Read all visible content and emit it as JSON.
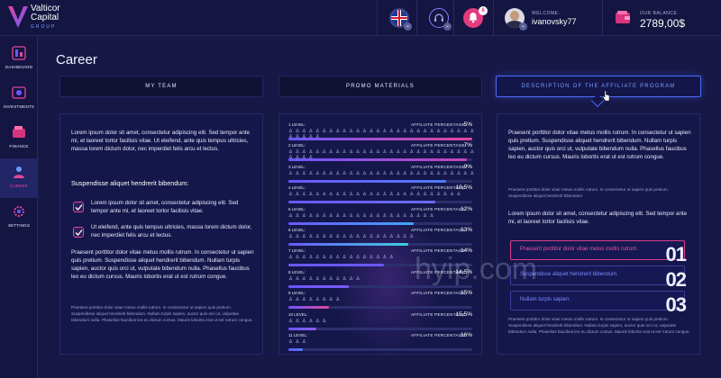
{
  "brand": {
    "line1": "Valticor",
    "line2": "Capital",
    "sub": "GROUP"
  },
  "header": {
    "welcome_label": "WELCOME:",
    "username": "ivanovsky77",
    "balance_label": "OUR BALANCE:",
    "balance_value": "2789,00$",
    "notification_count": "8",
    "lang": "EN"
  },
  "sidebar": {
    "items": [
      {
        "label": "DASHBOARD",
        "icon": "dashboard-icon"
      },
      {
        "label": "INVESTMENTS",
        "icon": "investments-icon"
      },
      {
        "label": "FINANCE",
        "icon": "finance-icon"
      },
      {
        "label": "CAREER",
        "icon": "career-icon",
        "active": true
      },
      {
        "label": "SETTINGS",
        "icon": "settings-icon"
      }
    ]
  },
  "page": {
    "title": "Career"
  },
  "tabs": [
    {
      "label": "MY TEAM"
    },
    {
      "label": "PROMO MATERIALS"
    },
    {
      "label": "DESCRIPTION OF THE AFFILIATE PROGRAM",
      "active": true
    }
  ],
  "left": {
    "intro": "Lorem ipsum dolor sit amet, consectetur adipiscing elit. Sed tempor ante mi, et laoreet tortor facilisis vitae. Ut eleifend, ante quis tempus ultricies, massa lorem dictum dolor, nec imperdiet felis arcu et lectus.",
    "subhead": "Suspendisse aliquet hendrerit bibendum:",
    "checks": [
      "Lorem ipsum dolor sit amet, consectetur adipiscing elit. Sed tempor ante mi, et laoreet tortor facilisis vitae.",
      "Ut eleifend, ante quis tempus ultricies, massa lorem dictum dolor, nec imperdiet felis arcu et lectus."
    ],
    "body": "Praesent porttitor dolor vitae metus mollis rutrum. In consectetur ut sapien quis pretium. Suspendisse aliquet hendrerit bibendum. Nullam turpis sapien, auctor quis orci ut, vulputate bibendum nulla. Phasellus faucibus leo eu dictum cursus. Mauris lobortis erat ut est rutrum congue.",
    "small": "Praesent porttitor dolor vitae metus mollis rutrum. In consectetur ut sapien quis pretium. Suspendisse aliquet hendrerit bibendum. Nullam turpis sapien, auctor quis orci ut, vulputate bibendum nulla. Phasellus faucibus leo eu dictum cursus. Mauris lobortis erat ut est rutrum congue."
  },
  "levels": {
    "perc_label": "AFFILIATE PERCENTAGE:",
    "items": [
      {
        "label": "1 LEVEL:",
        "percent": "5%",
        "progress": 1.0,
        "color": "#e0479c",
        "people": "♙ ♙ ♙ ♙ ♙ ♙ ♙ ♙ ♙ ♙ ♙ ♙ ♙ ♙ ♙ ♙ ♙ ♙ ♙ ♙ ♙ ♙ ♙ ♙ ♙ ♙ ♙ ♙ ♙ ♙ ♙ ♙ ♙"
      },
      {
        "label": "2 LEVEL:",
        "percent": "7%",
        "progress": 0.97,
        "color": "#c544b8",
        "people": "♙ ♙ ♙ ♙ ♙ ♙ ♙ ♙ ♙ ♙ ♙ ♙ ♙ ♙ ♙ ♙ ♙ ♙ ♙ ♙ ♙ ♙ ♙ ♙ ♙ ♙ ♙ ♙ ♙ ♙ ♙ ♙"
      },
      {
        "label": "3 LEVEL:",
        "percent": "9%",
        "progress": 0.86,
        "color": "#4f7bff",
        "people": "♙ ♙ ♙ ♙ ♙ ♙ ♙ ♙ ♙ ♙ ♙ ♙ ♙ ♙ ♙ ♙ ♙ ♙ ♙ ♙ ♙ ♙ ♙ ♙ ♙ ♙ ♙ ♙"
      },
      {
        "label": "4 LEVEL:",
        "percent": "10,5%",
        "progress": 0.8,
        "color": "#6a6cff",
        "people": "♙ ♙ ♙ ♙ ♙ ♙ ♙ ♙ ♙ ♙ ♙ ♙ ♙ ♙ ♙ ♙ ♙ ♙ ♙ ♙ ♙ ♙ ♙ ♙ ♙ ♙"
      },
      {
        "label": "5 LEVEL:",
        "percent": "12%",
        "progress": 0.68,
        "color": "#3fa7ff",
        "people": "♙ ♙ ♙ ♙ ♙ ♙ ♙ ♙ ♙ ♙ ♙ ♙ ♙ ♙ ♙ ♙ ♙ ♙ ♙ ♙ ♙ ♙"
      },
      {
        "label": "6 LEVEL:",
        "percent": "13%",
        "progress": 0.65,
        "color": "#3fd0e0",
        "people": "♙ ♙ ♙ ♙ ♙ ♙ ♙ ♙ ♙ ♙ ♙ ♙ ♙ ♙ ♙ ♙ ♙ ♙ ♙"
      },
      {
        "label": "7 LEVEL:",
        "percent": "14%",
        "progress": 0.52,
        "color": "#6a58ff",
        "people": "♙ ♙ ♙ ♙ ♙ ♙ ♙ ♙ ♙ ♙ ♙ ♙ ♙ ♙ ♙ ♙"
      },
      {
        "label": "8 LEVEL:",
        "percent": "14,5%",
        "progress": 0.33,
        "color": "#7c5cff",
        "people": "♙ ♙ ♙ ♙ ♙ ♙ ♙ ♙ ♙ ♙ ♙"
      },
      {
        "label": "9 LEVEL:",
        "percent": "15%",
        "progress": 0.22,
        "color": "#e0479c",
        "people": "♙ ♙ ♙ ♙ ♙ ♙ ♙ ♙"
      },
      {
        "label": "10 LEVEL:",
        "percent": "15,5%",
        "progress": 0.15,
        "color": "#8a5cff",
        "people": "♙ ♙ ♙ ♙ ♙ ♙"
      },
      {
        "label": "11 LEVEL:",
        "percent": "16%",
        "progress": 0.08,
        "color": "#4f7bff",
        "people": "♙ ♙ ♙"
      }
    ]
  },
  "right": {
    "lead": "Praesent porttitor dolor vitae metus mollis rutrum. In consectetur ut sapien quis pretium. Suspendisse aliquet hendrerit bibendum. Nullam turpis sapien, auctor quis orci ut, vulputate bibendum nulla. Phasellus faucibus leo eu dictum cursus. Mauris lobortis erat ut est rutrum congue.",
    "small1": "Praesent porttitor dolor vitae metus mollis rutrum. In consectetur ut sapien quis pretium. Suspendisse aliquet hendrerit bibendum.",
    "lead2": "Lorem ipsum dolor sit amet, consectetur adipiscing elit. Sed tempor ante mi, et laoreet tortor facilisis vitae.",
    "boxes": [
      {
        "text": "Praesent porttitor dolor vitae metus mollis rutrum.",
        "num": "01",
        "active": true
      },
      {
        "text": "Suspendisse aliquet hendrerit bibendum.",
        "num": "02"
      },
      {
        "text": "Nullam turpis sapien.",
        "num": "03"
      }
    ],
    "small2": "Praesent porttitor dolor vitae metus mollis rutrum. In consectetur ut sapien quis pretium. Suspendisse aliquet hendrerit bibendum. Nullam turpis sapien, auctor quis orci ut, vulputate bibendum nulla. Phasellus faucibus leo eu dictum cursus. Mauris lobortis erat ut est rutrum congue."
  },
  "watermark": "hyip.com"
}
